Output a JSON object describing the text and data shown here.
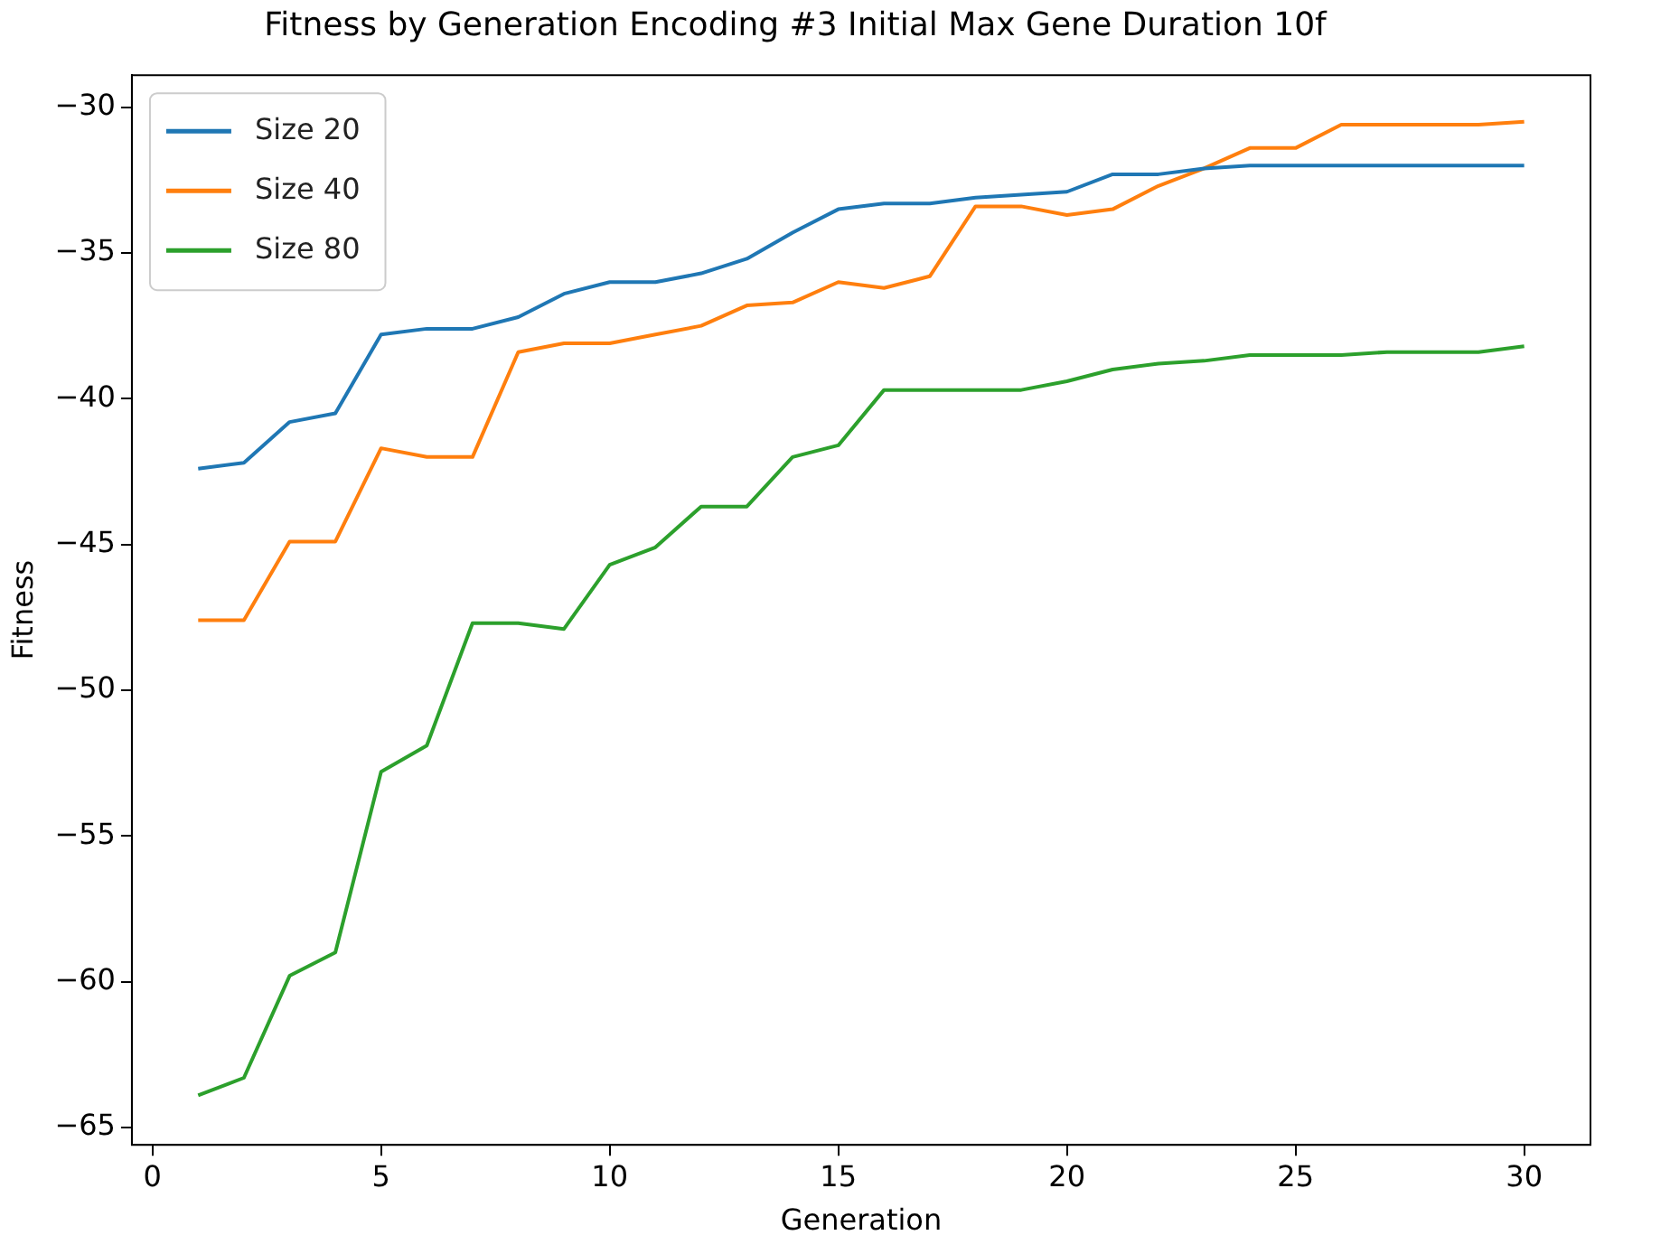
{
  "chart_data": {
    "type": "line",
    "title": "Fitness by Generation Encoding #3 Initial Max Gene Duration 10f",
    "xlabel": "Generation",
    "ylabel": "Fitness",
    "x": [
      1,
      2,
      3,
      4,
      5,
      6,
      7,
      8,
      9,
      10,
      11,
      12,
      13,
      14,
      15,
      16,
      17,
      18,
      19,
      20,
      21,
      22,
      23,
      24,
      25,
      26,
      27,
      28,
      29,
      30
    ],
    "series": [
      {
        "name": "Size 20",
        "color": "#1f77b4",
        "values": [
          -42.4,
          -42.2,
          -40.8,
          -40.5,
          -37.8,
          -37.6,
          -37.6,
          -37.2,
          -36.4,
          -36.0,
          -36.0,
          -35.7,
          -35.2,
          -34.3,
          -33.5,
          -33.3,
          -33.3,
          -33.1,
          -33.0,
          -32.9,
          -32.3,
          -32.3,
          -32.1,
          -32.0,
          -32.0,
          -32.0,
          -32.0,
          -32.0,
          -32.0,
          -32.0
        ]
      },
      {
        "name": "Size 40",
        "color": "#ff7f0e",
        "values": [
          -47.6,
          -47.6,
          -44.9,
          -44.9,
          -41.7,
          -42.0,
          -42.0,
          -38.4,
          -38.1,
          -38.1,
          -37.8,
          -37.5,
          -36.8,
          -36.7,
          -36.0,
          -36.2,
          -35.8,
          -33.4,
          -33.4,
          -33.7,
          -33.5,
          -32.7,
          -32.1,
          -31.4,
          -31.4,
          -30.6,
          -30.6,
          -30.6,
          -30.6,
          -30.5
        ]
      },
      {
        "name": "Size 80",
        "color": "#2ca02c",
        "values": [
          -63.9,
          -63.3,
          -59.8,
          -59.0,
          -52.8,
          -51.9,
          -47.7,
          -47.7,
          -47.9,
          -45.7,
          -45.1,
          -43.7,
          -43.7,
          -42.0,
          -41.6,
          -39.7,
          -39.7,
          -39.7,
          -39.7,
          -39.4,
          -39.0,
          -38.8,
          -38.7,
          -38.5,
          -38.5,
          -38.5,
          -38.4,
          -38.4,
          -38.4,
          -38.2
        ]
      }
    ],
    "xlim": [
      -0.45,
      31.45
    ],
    "xticks": [
      0,
      5,
      10,
      15,
      20,
      25,
      30
    ],
    "ylim": [
      -65.6,
      -28.9
    ],
    "yticks": [
      -65,
      -60,
      -55,
      -50,
      -45,
      -40,
      -35,
      -30
    ],
    "grid": false,
    "legend": "top left",
    "marker": "none",
    "line_style": "solid"
  }
}
